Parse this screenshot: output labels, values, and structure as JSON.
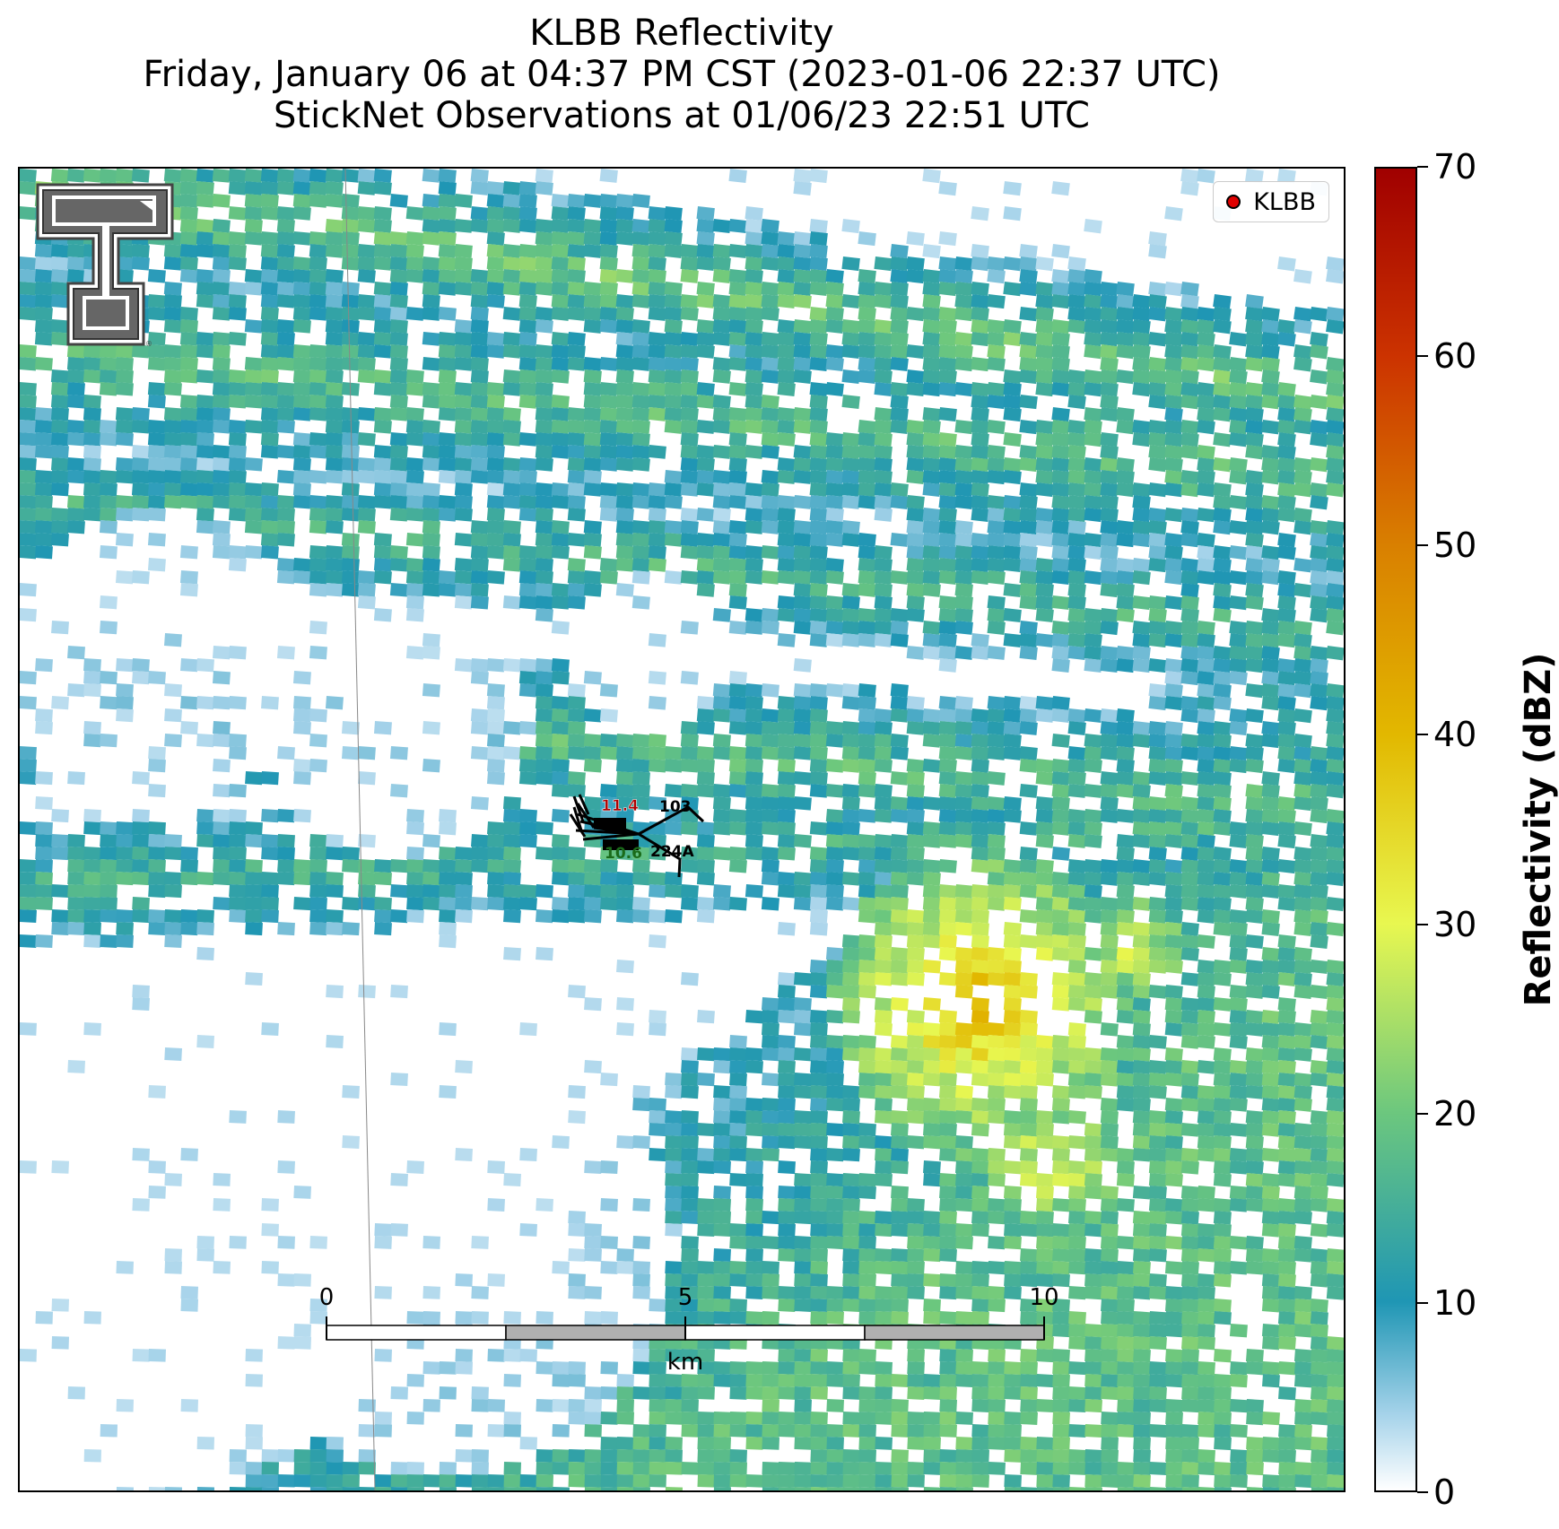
{
  "title": {
    "line1": "KLBB Reflectivity",
    "line2": "Friday, January 06 at 04:37 PM CST (2023-01-06 22:37 UTC)",
    "line3": "StickNet Observations at 01/06/23 22:51 UTC"
  },
  "legend": {
    "label": "KLBB",
    "marker_color": "#e00000"
  },
  "colorbar": {
    "label": "Reflectivity (dBZ)",
    "min": 0,
    "max": 70,
    "ticks": [
      "0",
      "10",
      "20",
      "30",
      "40",
      "50",
      "60",
      "70"
    ],
    "stops": [
      {
        "v": 0,
        "c": "#ffffff"
      },
      {
        "v": 4,
        "c": "#a6d3ea"
      },
      {
        "v": 10,
        "c": "#1f96b4"
      },
      {
        "v": 20,
        "c": "#6cc77e"
      },
      {
        "v": 30,
        "c": "#e8f750"
      },
      {
        "v": 40,
        "c": "#e2b800"
      },
      {
        "v": 50,
        "c": "#d98000"
      },
      {
        "v": 60,
        "c": "#cc3300"
      },
      {
        "v": 70,
        "c": "#a00000"
      }
    ]
  },
  "scalebar": {
    "labels": [
      "0",
      "5",
      "10"
    ],
    "unit": "km"
  },
  "stations": [
    {
      "id": "103",
      "value_red": "11.4",
      "value_green": "10.6",
      "id2": "224A"
    }
  ],
  "logo": {
    "icon": "texas-tech-double-t-logo"
  }
}
